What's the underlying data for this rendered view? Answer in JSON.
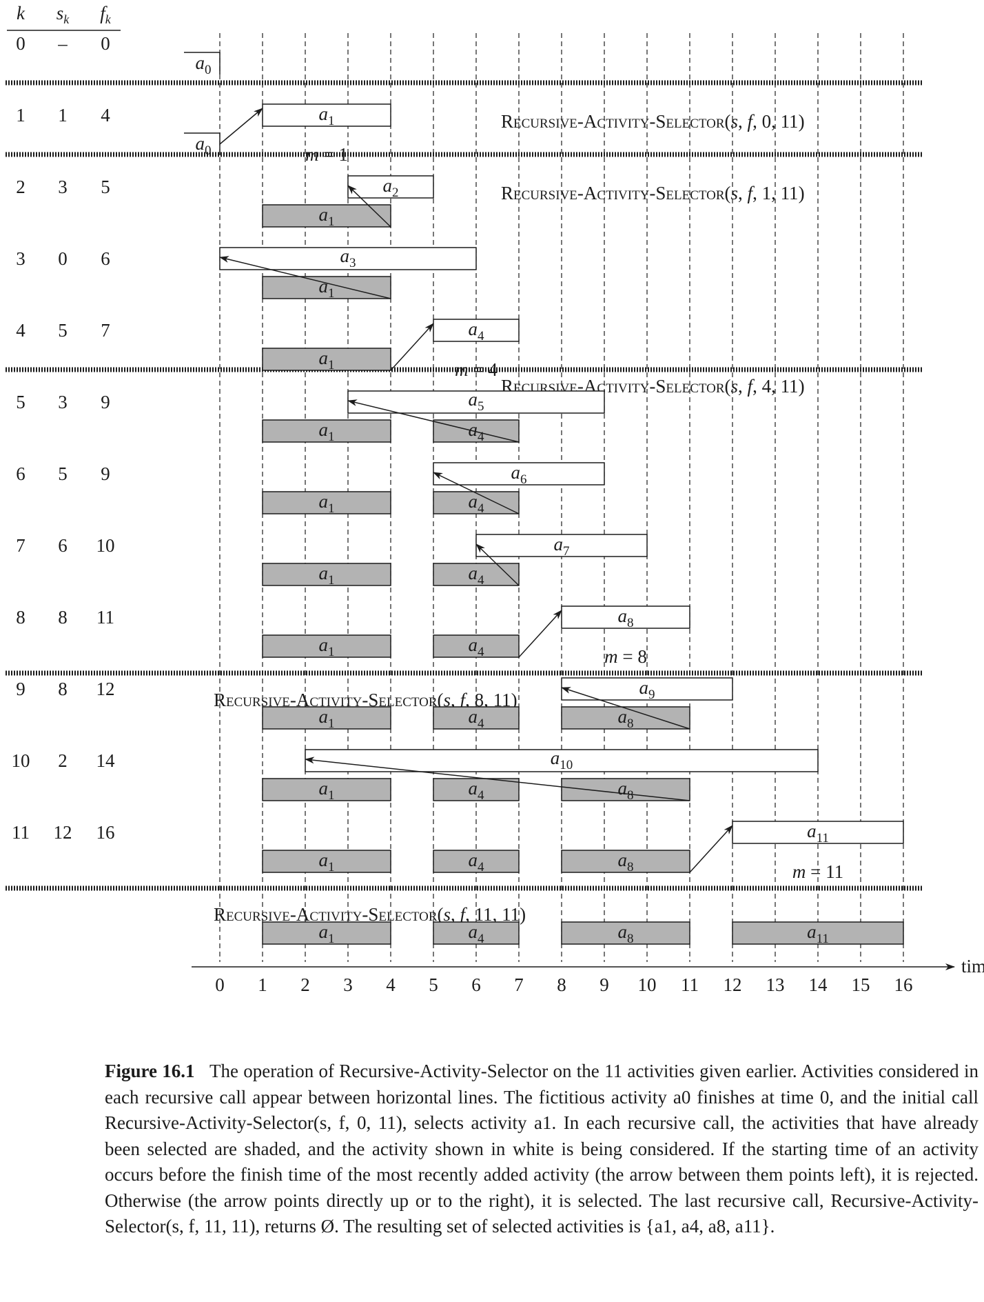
{
  "table": {
    "headers": [
      "k",
      "s",
      "f"
    ],
    "header_subscripts": [
      "",
      "k",
      "k"
    ],
    "rows": [
      [
        "0",
        "–",
        "0"
      ],
      [
        "1",
        "1",
        "4"
      ],
      [
        "2",
        "3",
        "5"
      ],
      [
        "3",
        "0",
        "6"
      ],
      [
        "4",
        "5",
        "7"
      ],
      [
        "5",
        "3",
        "9"
      ],
      [
        "6",
        "5",
        "9"
      ],
      [
        "7",
        "6",
        "10"
      ],
      [
        "8",
        "8",
        "11"
      ],
      [
        "9",
        "8",
        "12"
      ],
      [
        "10",
        "2",
        "14"
      ],
      [
        "11",
        "12",
        "16"
      ]
    ]
  },
  "axis": {
    "label": "time",
    "ticks": [
      "0",
      "1",
      "2",
      "3",
      "4",
      "5",
      "6",
      "7",
      "8",
      "9",
      "10",
      "11",
      "12",
      "13",
      "14",
      "15",
      "16"
    ]
  },
  "calls": [
    {
      "label": "Recursive-Activity-Selector(s, f, 0, 11)",
      "row": 1
    },
    {
      "label": "Recursive-Activity-Selector(s, f, 1, 11)",
      "row": 2
    },
    {
      "label": "Recursive-Activity-Selector(s, f, 4, 11)",
      "row": 5
    },
    {
      "label": "Recursive-Activity-Selector(s, f, 8, 11)",
      "row": 9
    },
    {
      "label": "Recursive-Activity-Selector(s, f, 11, 11)",
      "row": 12
    }
  ],
  "rows": [
    {
      "considered": {
        "id": "0",
        "s": -1,
        "f": 0
      },
      "selected": []
    },
    {
      "considered": {
        "id": "1",
        "s": 1,
        "f": 4
      },
      "selected": [],
      "prev": {
        "id": "0",
        "s": -1,
        "f": 0
      },
      "arrow": "right",
      "m": "m = 1"
    },
    {
      "considered": {
        "id": "2",
        "s": 3,
        "f": 5
      },
      "selected": [
        "1"
      ],
      "arrow": "left"
    },
    {
      "considered": {
        "id": "3",
        "s": 0,
        "f": 6
      },
      "selected": [
        "1"
      ],
      "arrow": "left"
    },
    {
      "considered": {
        "id": "4",
        "s": 5,
        "f": 7
      },
      "selected": [
        "1"
      ],
      "arrow": "right",
      "m": "m = 4"
    },
    {
      "considered": {
        "id": "5",
        "s": 3,
        "f": 9
      },
      "selected": [
        "1",
        "4"
      ],
      "arrow": "left"
    },
    {
      "considered": {
        "id": "6",
        "s": 5,
        "f": 9
      },
      "selected": [
        "1",
        "4"
      ],
      "arrow": "left"
    },
    {
      "considered": {
        "id": "7",
        "s": 6,
        "f": 10
      },
      "selected": [
        "1",
        "4"
      ],
      "arrow": "left"
    },
    {
      "considered": {
        "id": "8",
        "s": 8,
        "f": 11
      },
      "selected": [
        "1",
        "4"
      ],
      "arrow": "right",
      "m": "m = 8"
    },
    {
      "considered": {
        "id": "9",
        "s": 8,
        "f": 12
      },
      "selected": [
        "1",
        "4",
        "8"
      ],
      "arrow": "left"
    },
    {
      "considered": {
        "id": "10",
        "s": 2,
        "f": 14
      },
      "selected": [
        "1",
        "4",
        "8"
      ],
      "arrow": "left"
    },
    {
      "considered": {
        "id": "11",
        "s": 12,
        "f": 16
      },
      "selected": [
        "1",
        "4",
        "8"
      ],
      "arrow": "right",
      "m": "m = 11"
    },
    {
      "considered": null,
      "selected": [
        "1",
        "4",
        "8",
        "11"
      ]
    }
  ],
  "activities": {
    "0": {
      "s": -1,
      "f": 0
    },
    "1": {
      "s": 1,
      "f": 4
    },
    "2": {
      "s": 3,
      "f": 5
    },
    "3": {
      "s": 0,
      "f": 6
    },
    "4": {
      "s": 5,
      "f": 7
    },
    "5": {
      "s": 3,
      "f": 9
    },
    "6": {
      "s": 5,
      "f": 9
    },
    "7": {
      "s": 6,
      "f": 10
    },
    "8": {
      "s": 8,
      "f": 11
    },
    "9": {
      "s": 8,
      "f": 12
    },
    "10": {
      "s": 2,
      "f": 14
    },
    "11": {
      "s": 12,
      "f": 16
    }
  },
  "colors": {
    "shaded": "#b3b3b3",
    "ink": "#1c1c1c",
    "white": "#ffffff"
  },
  "caption": {
    "label": "Figure 16.1",
    "text": "The operation of Recursive-Activity-Selector on the 11 activities given earlier. Activities considered in each recursive call appear between horizontal lines. The fictitious activity a0 finishes at time 0, and the initial call Recursive-Activity-Selector(s, f, 0, 11), selects activity a1. In each recursive call, the activities that have already been selected are shaded, and the activity shown in white is being considered. If the starting time of an activity occurs before the finish time of the most recently added activity (the arrow between them points left), it is rejected. Otherwise (the arrow points directly up or to the right), it is selected. The last recursive call, Recursive-Activity-Selector(s, f, 11, 11), returns Ø. The resulting set of selected activities is {a1, a4, a8, a11}."
  }
}
